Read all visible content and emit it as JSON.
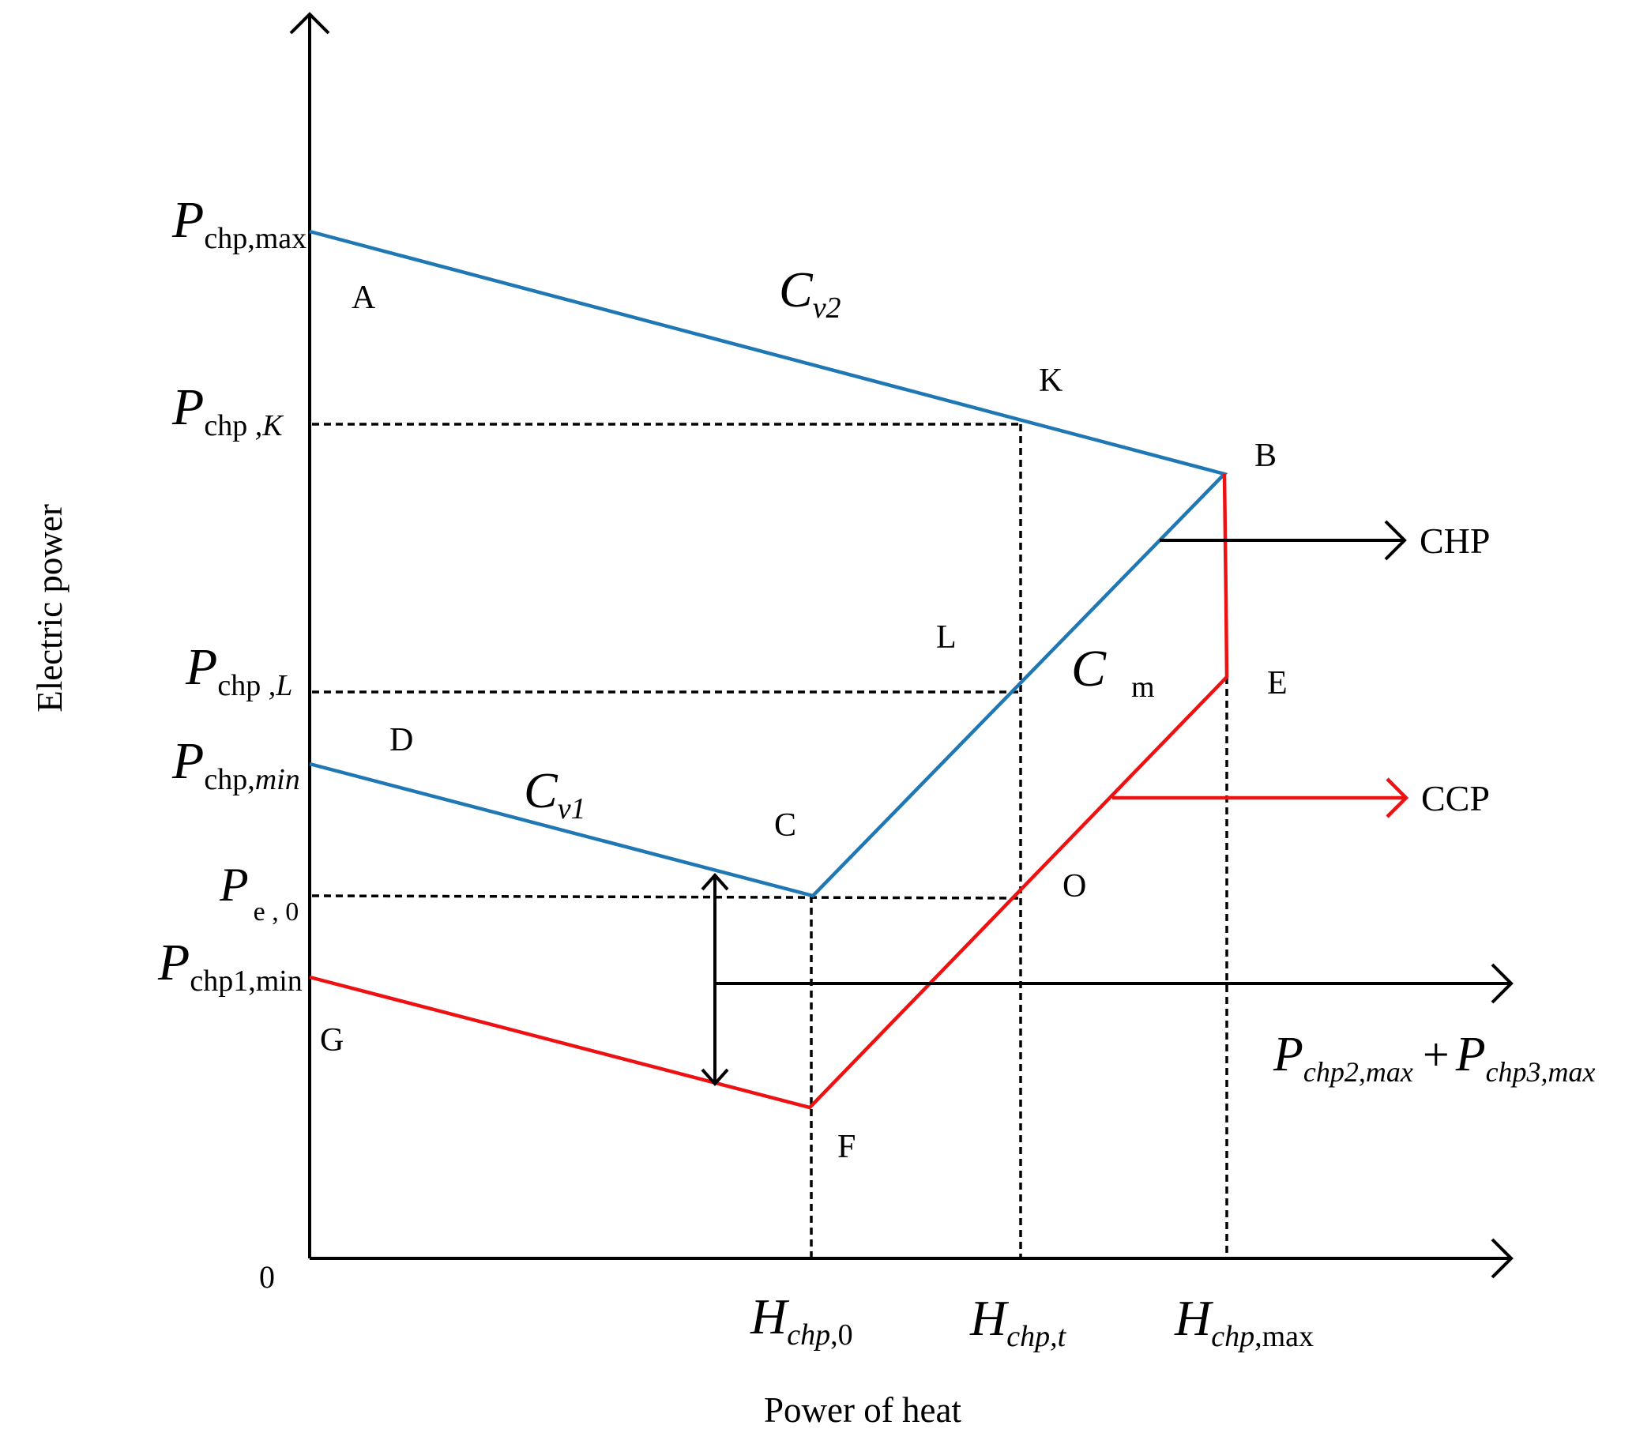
{
  "axes": {
    "x_label": "Power of heat",
    "y_label": "Electric power",
    "origin": "0"
  },
  "y_ticks": {
    "p_chp_max": {
      "main": "P",
      "sub": "chp,max"
    },
    "p_chp_k": {
      "main": "P",
      "sub1": "chp",
      "sub2": " ,K"
    },
    "p_chp_l": {
      "main": "P",
      "sub1": "chp",
      "sub2": " ,L"
    },
    "p_chp_min": {
      "main": "P",
      "sub1": "chp,",
      "sub2": "min"
    },
    "p_e_0": {
      "main": "P",
      "sub": "e , 0"
    },
    "p_chp1_min": {
      "main": "P",
      "sub": "chp1,min"
    }
  },
  "x_ticks": {
    "h_chp_0": {
      "main": "H",
      "sub1": "chp",
      "sub2": ",0"
    },
    "h_chp_t": {
      "main": "H",
      "sub": "chp,t"
    },
    "h_chp_max": {
      "main": "H",
      "sub1": "chp",
      "sub2": ",max"
    }
  },
  "points": {
    "A": "A",
    "B": "B",
    "C": "C",
    "D": "D",
    "E": "E",
    "F": "F",
    "G": "G",
    "K": "K",
    "L": "L",
    "O": "O"
  },
  "curves": {
    "cv2": {
      "main": "C",
      "sub": "v2"
    },
    "cv1": {
      "main": "C",
      "sub": "v1"
    },
    "cm": {
      "main": "C",
      "sub": "m"
    }
  },
  "legend": {
    "chp": "CHP",
    "ccp": "CCP"
  },
  "expression": {
    "p1": "P",
    "s1": "chp2,max",
    "plus": "+",
    "p2": "P",
    "s2": "chp3,max"
  },
  "colors": {
    "chp_region": "#1f77b4",
    "ccp_region": "#ee1111",
    "axis": "#000000"
  }
}
